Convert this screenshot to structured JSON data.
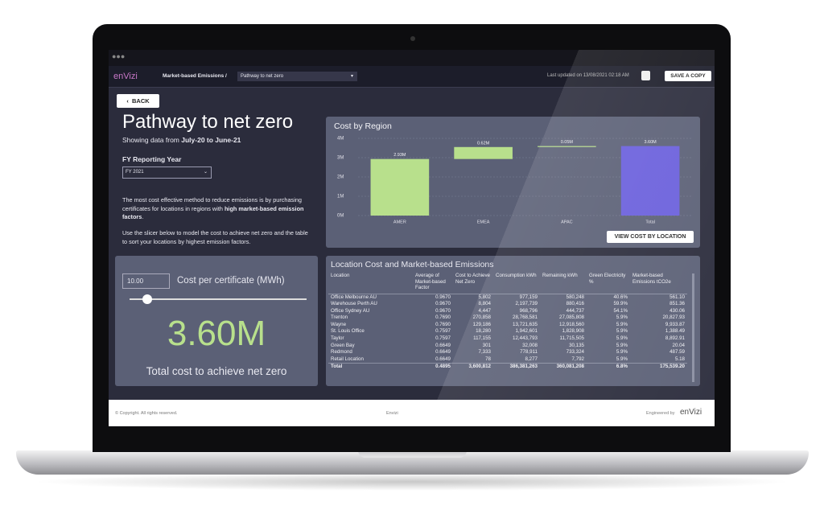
{
  "nav": {
    "logo": "enVizi",
    "breadcrumb": "Market-based Emissions /",
    "page_select": "Pathway to net zero",
    "last_updated": "Last updated on 13/08/2021 02:18 AM",
    "save": "SAVE A COPY"
  },
  "left": {
    "back": "BACK",
    "title": "Pathway to net zero",
    "showing": "Showing data from",
    "range": "July-20 to June-21",
    "fy_label": "FY Reporting Year",
    "fy_value": "FY 2021",
    "para1": [
      "The most cost effective method to reduce emissions is by purchasing certificates for locations in regions with ",
      "high market-based emission factors",
      "."
    ],
    "para2": "Use the slicer below to model the cost to achieve net zero and the table to sort your locations by highest emission factors."
  },
  "slicer": {
    "input": "10.00",
    "label": "Cost per certificate (MWh)",
    "total": "3.60M",
    "total_label": "Total cost to achieve net zero"
  },
  "chart_data": {
    "type": "waterfall",
    "title": "Cost by Region",
    "categories": [
      "AMER",
      "EMEA",
      "APAC",
      "Total"
    ],
    "values": [
      2.93,
      0.62,
      0.05,
      3.6
    ],
    "value_labels": [
      "2.93M",
      "0.62M",
      "0.05M",
      "3.60M"
    ],
    "colors": [
      "#b8e08c",
      "#b8e08c",
      "#b8e08c",
      "#6a5fdc"
    ],
    "ylim": [
      0,
      4
    ],
    "yticks": [
      {
        "value": 0,
        "label": "0M"
      },
      {
        "value": 1,
        "label": "1M"
      },
      {
        "value": 2,
        "label": "2M"
      },
      {
        "value": 3,
        "label": "3M"
      },
      {
        "value": 4,
        "label": "4M"
      }
    ],
    "grid": true,
    "button": "VIEW COST BY LOCATION"
  },
  "table": {
    "title": "Location Cost and Market-based Emissions",
    "columns": [
      "Location",
      "Average of Market-based Factor",
      "Cost to Achieve Net Zero",
      "Consumption kWh",
      "Remaining kWh",
      "Green Electricity %",
      "Market-based Emissions tCO2e"
    ],
    "rows": [
      [
        "Office Melbourne AU",
        "0.9670",
        "5,802",
        "977,159",
        "580,248",
        "40.6%",
        "561.10"
      ],
      [
        "Warehouse Perth AU",
        "0.9670",
        "8,804",
        "2,197,739",
        "880,416",
        "59.9%",
        "851.36"
      ],
      [
        "Office Sydney AU",
        "0.9670",
        "4,447",
        "968,796",
        "444,737",
        "54.1%",
        "430.06"
      ],
      [
        "Trenton",
        "0.7690",
        "270,858",
        "28,768,581",
        "27,085,808",
        "5.9%",
        "20,827.93"
      ],
      [
        "Wayne",
        "0.7690",
        "129,186",
        "13,721,635",
        "12,918,560",
        "5.9%",
        "9,933.87"
      ],
      [
        "St. Louis Office",
        "0.7597",
        "18,280",
        "1,942,601",
        "1,828,908",
        "5.9%",
        "1,388.49"
      ],
      [
        "Taylor",
        "0.7597",
        "117,155",
        "12,443,793",
        "11,715,505",
        "5.9%",
        "8,892.91"
      ],
      [
        "Green Bay",
        "0.6649",
        "301",
        "32,008",
        "30,135",
        "5.9%",
        "20.04"
      ],
      [
        "Redmond",
        "0.6649",
        "7,333",
        "778,911",
        "733,324",
        "5.9%",
        "487.59"
      ],
      [
        "Retail Location",
        "0.6649",
        "78",
        "8,277",
        "7,792",
        "5.9%",
        "5.18"
      ]
    ],
    "total": [
      "Total",
      "0.4895",
      "3,600,812",
      "386,381,263",
      "360,081,208",
      "6.8%",
      "175,539.20"
    ]
  },
  "footer": {
    "copyright": "© Copyright. All rights reserved.",
    "center": "Envizi",
    "engineered": "Engineered by",
    "logo": "enVizi"
  }
}
